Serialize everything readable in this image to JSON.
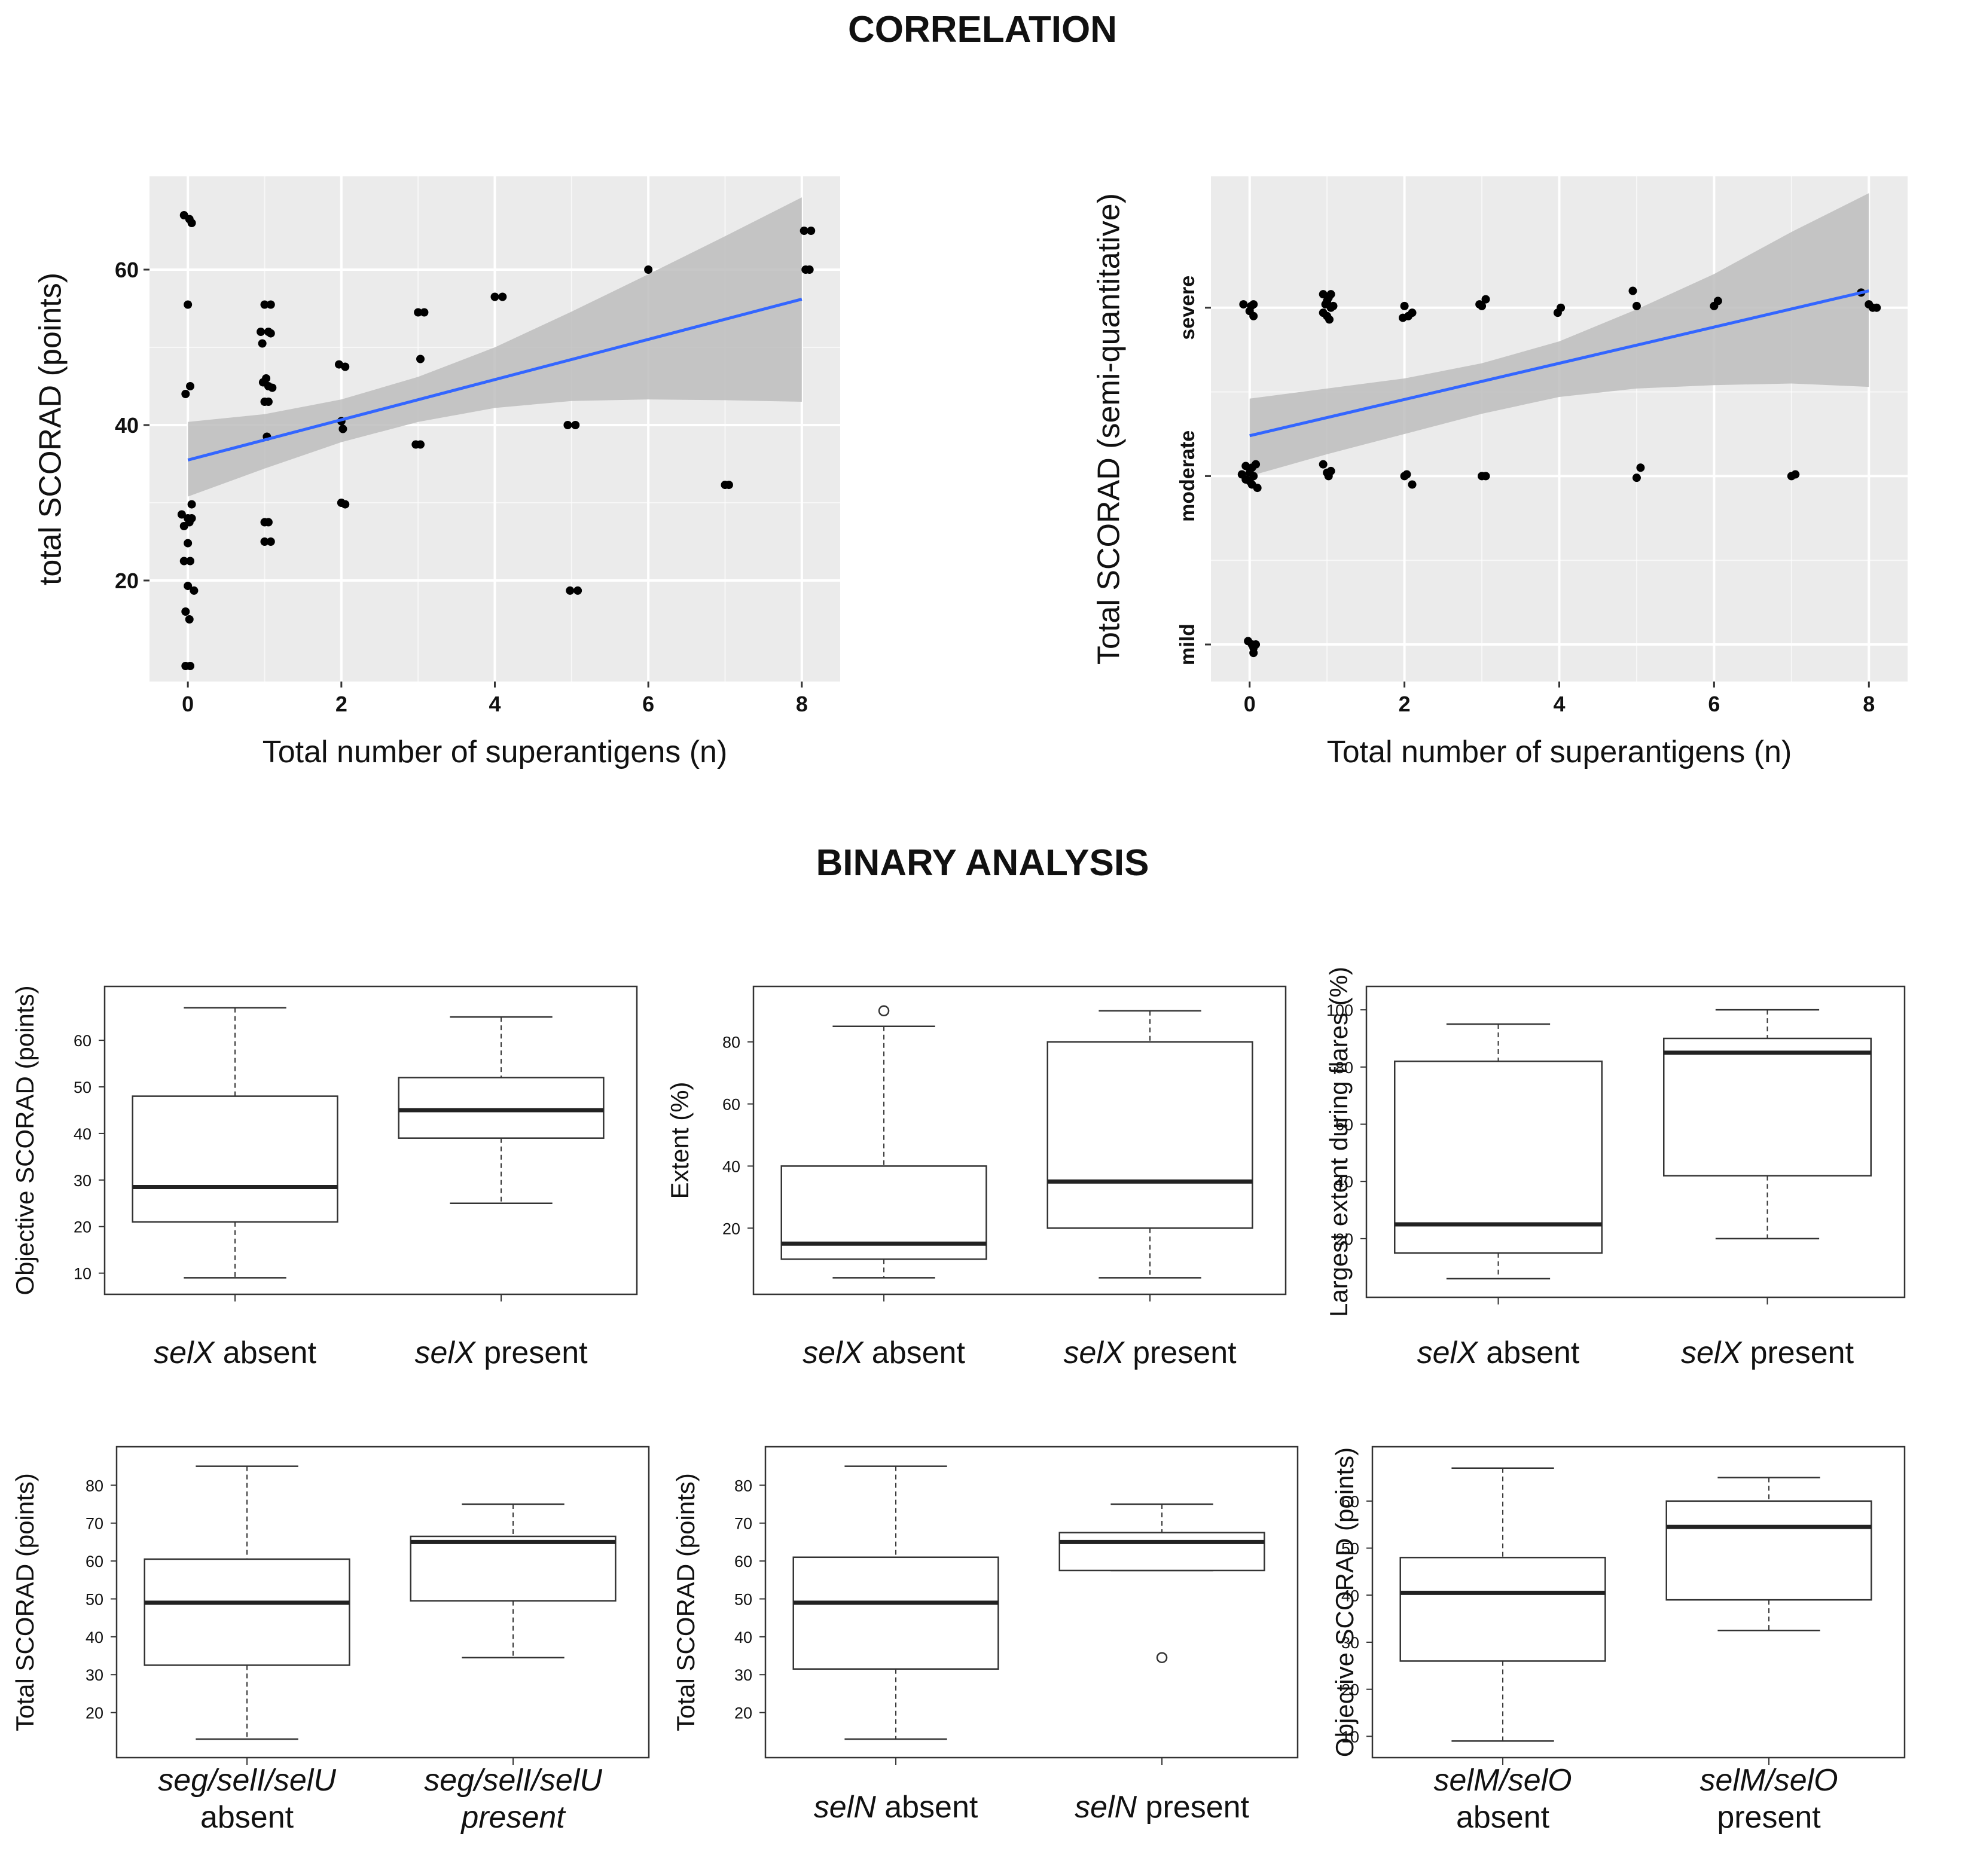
{
  "titles": {
    "correlation": "CORRELATION",
    "binary": "BINARY ANALYSIS"
  },
  "colors": {
    "panel_bg": "#ebebeb",
    "grid": "#ffffff",
    "points": "#000000",
    "fit_line": "#3366ff",
    "ribbon": "#bdbdbd",
    "box_stroke": "#333333"
  },
  "chart_data": [
    {
      "type": "scatter",
      "xlabel": "Total number of superantigens (n)",
      "ylabel": "total SCORAD (points)",
      "xlim": [
        -0.5,
        8.5
      ],
      "ylim": [
        7,
        72
      ],
      "xticks": [
        0,
        2,
        4,
        6,
        8
      ],
      "yticks": [
        20,
        40,
        60
      ],
      "grid": true,
      "points": [
        [
          -0.05,
          67
        ],
        [
          0.02,
          66.5
        ],
        [
          0.05,
          66
        ],
        [
          0,
          55.5
        ],
        [
          0.03,
          45
        ],
        [
          -0.03,
          44
        ],
        [
          -0.08,
          28.5
        ],
        [
          0,
          28
        ],
        [
          0.05,
          28
        ],
        [
          0.02,
          27.5
        ],
        [
          -0.05,
          27
        ],
        [
          0.05,
          29.8
        ],
        [
          0,
          24.8
        ],
        [
          -0.05,
          22.5
        ],
        [
          0.03,
          22.5
        ],
        [
          0,
          19.3
        ],
        [
          0.08,
          18.7
        ],
        [
          -0.03,
          16
        ],
        [
          0.02,
          15
        ],
        [
          -0.03,
          9
        ],
        [
          0.03,
          9
        ],
        [
          1,
          55.5
        ],
        [
          1.08,
          55.5
        ],
        [
          0.95,
          52
        ],
        [
          1.05,
          52
        ],
        [
          1.08,
          51.8
        ],
        [
          0.97,
          50.5
        ],
        [
          1.02,
          46
        ],
        [
          0.98,
          45.5
        ],
        [
          1.05,
          45
        ],
        [
          1.1,
          44.8
        ],
        [
          1,
          43
        ],
        [
          1.05,
          43
        ],
        [
          1.03,
          38.5
        ],
        [
          1,
          27.5
        ],
        [
          1.05,
          27.5
        ],
        [
          1,
          25
        ],
        [
          1.08,
          25
        ],
        [
          1.97,
          47.8
        ],
        [
          2.05,
          47.5
        ],
        [
          2,
          40.5
        ],
        [
          2.02,
          39.5
        ],
        [
          2,
          30
        ],
        [
          2.05,
          29.8
        ],
        [
          3,
          54.5
        ],
        [
          3.08,
          54.5
        ],
        [
          3.03,
          48.5
        ],
        [
          2.97,
          37.5
        ],
        [
          3.03,
          37.5
        ],
        [
          4,
          56.5
        ],
        [
          4.1,
          56.5
        ],
        [
          4.95,
          40
        ],
        [
          5.05,
          40
        ],
        [
          4.98,
          18.7
        ],
        [
          5.08,
          18.7
        ],
        [
          6,
          60
        ],
        [
          7,
          32.3
        ],
        [
          7.05,
          32.3
        ],
        [
          8.03,
          65
        ],
        [
          8.12,
          65
        ],
        [
          8.05,
          60
        ],
        [
          8.1,
          60
        ]
      ],
      "fit": {
        "x": [
          0,
          8
        ],
        "y": [
          35.5,
          56.2
        ]
      },
      "ci_band": {
        "x": [
          0,
          1,
          2,
          3,
          4,
          5,
          6,
          7,
          8
        ],
        "lower": [
          30.8,
          34.4,
          37.8,
          40.4,
          42.2,
          43.1,
          43.3,
          43.2,
          43
        ],
        "upper": [
          40.4,
          41.4,
          43.3,
          46.2,
          50,
          54.6,
          59.4,
          64.3,
          69.3
        ]
      }
    },
    {
      "type": "scatter",
      "xlabel": "Total number of superantigens (n)",
      "ylabel": "Total SCORAD (semi-quantitative)",
      "xlim": [
        -0.5,
        8.5
      ],
      "ylim": [
        0.78,
        3.78
      ],
      "xticks": [
        0,
        2,
        4,
        6,
        8
      ],
      "ytick_values": [
        1,
        2,
        3
      ],
      "ytick_labels": [
        "mild",
        "moderate",
        "severe"
      ],
      "grid": true,
      "points": [
        [
          -0.08,
          3.02
        ],
        [
          0.02,
          3.01
        ],
        [
          0.05,
          3.02
        ],
        [
          0,
          2.98
        ],
        [
          0.05,
          2.95
        ],
        [
          0.95,
          3.08
        ],
        [
          1.05,
          3.08
        ],
        [
          1,
          3.04
        ],
        [
          1.05,
          3
        ],
        [
          1.08,
          3.01
        ],
        [
          0.95,
          2.97
        ],
        [
          1,
          2.95
        ],
        [
          1.03,
          2.93
        ],
        [
          0.98,
          3.02
        ],
        [
          1.02,
          3.06
        ],
        [
          2,
          3.01
        ],
        [
          2.05,
          2.95
        ],
        [
          1.98,
          2.94
        ],
        [
          2.1,
          2.97
        ],
        [
          3,
          3.01
        ],
        [
          3.05,
          3.05
        ],
        [
          2.97,
          3.02
        ],
        [
          3.98,
          2.97
        ],
        [
          4.02,
          3
        ],
        [
          4.95,
          3.1
        ],
        [
          5,
          3.01
        ],
        [
          6,
          3.01
        ],
        [
          6.05,
          3.04
        ],
        [
          7.9,
          3.09
        ],
        [
          8,
          3.02
        ],
        [
          8.05,
          3
        ],
        [
          8.1,
          3
        ],
        [
          -0.05,
          2.06
        ],
        [
          0.03,
          2.05
        ],
        [
          0.08,
          2.07
        ],
        [
          -0.1,
          2.01
        ],
        [
          0,
          2.02
        ],
        [
          0.05,
          2
        ],
        [
          -0.05,
          1.98
        ],
        [
          0,
          1.97
        ],
        [
          0.03,
          1.95
        ],
        [
          0.1,
          1.93
        ],
        [
          0.95,
          2.07
        ],
        [
          1.05,
          2.03
        ],
        [
          1.02,
          2
        ],
        [
          1,
          2.02
        ],
        [
          2,
          2
        ],
        [
          2.03,
          2.01
        ],
        [
          2.1,
          1.95
        ],
        [
          3,
          2
        ],
        [
          3.05,
          2
        ],
        [
          5,
          1.99
        ],
        [
          5.05,
          2.05
        ],
        [
          7,
          2
        ],
        [
          7.05,
          2.01
        ],
        [
          -0.02,
          1.02
        ],
        [
          0.03,
          1
        ],
        [
          0.05,
          0.98
        ],
        [
          0.08,
          1
        ],
        [
          0.05,
          0.95
        ]
      ],
      "fit": {
        "x": [
          0,
          8
        ],
        "y": [
          2.24,
          3.1
        ]
      },
      "ci_band": {
        "x": [
          0,
          1,
          2,
          3,
          4,
          5,
          6,
          7,
          8
        ],
        "lower": [
          2,
          2.13,
          2.25,
          2.37,
          2.47,
          2.52,
          2.54,
          2.55,
          2.53
        ],
        "upper": [
          2.46,
          2.52,
          2.58,
          2.67,
          2.8,
          2.99,
          3.2,
          3.45,
          3.68
        ]
      }
    },
    {
      "type": "box",
      "ylabel": "Objective SCORAD (points)",
      "ylim": [
        7,
        69
      ],
      "yticks": [
        10,
        20,
        30,
        40,
        50,
        60
      ],
      "groups": [
        {
          "label": [
            [
              [
                "selX",
                true
              ],
              [
                " absent",
                false
              ]
            ]
          ],
          "min": 9,
          "q1": 21,
          "median": 28.5,
          "q3": 48,
          "max": 67,
          "outliers": []
        },
        {
          "label": [
            [
              [
                "selX",
                true
              ],
              [
                " present",
                false
              ]
            ]
          ],
          "min": 25,
          "q1": 39,
          "median": 45,
          "q3": 52,
          "max": 65,
          "outliers": []
        }
      ]
    },
    {
      "type": "box",
      "ylabel": "Extent (%)",
      "ylim": [
        1,
        94
      ],
      "yticks": [
        20,
        40,
        60,
        80
      ],
      "groups": [
        {
          "label": [
            [
              [
                "selX",
                true
              ],
              [
                " absent",
                false
              ]
            ]
          ],
          "min": 4,
          "q1": 10,
          "median": 15,
          "q3": 40,
          "max": 85,
          "outliers": [
            90
          ]
        },
        {
          "label": [
            [
              [
                "selX",
                true
              ],
              [
                " present",
                false
              ]
            ]
          ],
          "min": 4,
          "q1": 20,
          "median": 35,
          "q3": 80,
          "max": 90,
          "outliers": []
        }
      ]
    },
    {
      "type": "box",
      "ylabel": "Largest extent during flares (%)",
      "ylim": [
        2,
        104
      ],
      "yticks": [
        20,
        40,
        60,
        80,
        100
      ],
      "groups": [
        {
          "label": [
            [
              [
                "selX",
                true
              ],
              [
                " absent",
                false
              ]
            ]
          ],
          "min": 6,
          "q1": 15,
          "median": 25,
          "q3": 82,
          "max": 95,
          "outliers": []
        },
        {
          "label": [
            [
              [
                "selX",
                true
              ],
              [
                " present",
                false
              ]
            ]
          ],
          "min": 20,
          "q1": 42,
          "median": 85,
          "q3": 90,
          "max": 100,
          "outliers": []
        }
      ]
    },
    {
      "type": "box",
      "ylabel": "Total SCORAD (points)",
      "ylim": [
        10,
        87
      ],
      "yticks": [
        20,
        30,
        40,
        50,
        60,
        70,
        80
      ],
      "groups": [
        {
          "label": [
            [
              [
                "seg/selI/selU",
                true
              ]
            ],
            [
              [
                "absent",
                false
              ]
            ]
          ],
          "min": 13,
          "q1": 32.5,
          "median": 49,
          "q3": 60.5,
          "max": 85,
          "outliers": []
        },
        {
          "label": [
            [
              [
                "seg/selI/selU",
                true
              ]
            ],
            [
              [
                "present",
                true
              ]
            ]
          ],
          "min": 34.5,
          "q1": 49.5,
          "median": 65,
          "q3": 66.5,
          "max": 75,
          "outliers": []
        }
      ]
    },
    {
      "type": "box",
      "ylabel": "Total SCORAD (points)",
      "ylim": [
        10,
        87
      ],
      "yticks": [
        20,
        30,
        40,
        50,
        60,
        70,
        80
      ],
      "groups": [
        {
          "label": [
            [
              [
                "selN",
                true
              ],
              [
                " absent",
                false
              ]
            ]
          ],
          "min": 13,
          "q1": 31.5,
          "median": 49,
          "q3": 61,
          "max": 85,
          "outliers": []
        },
        {
          "label": [
            [
              [
                "selN",
                true
              ],
              [
                " present",
                false
              ]
            ]
          ],
          "min": 57.5,
          "q1": 57.5,
          "median": 65,
          "q3": 67.5,
          "max": 75,
          "outliers": [
            34.5
          ]
        }
      ]
    },
    {
      "type": "box",
      "ylabel": "Objective SCORAD (points)",
      "ylim": [
        7,
        69
      ],
      "yticks": [
        10,
        20,
        30,
        40,
        50,
        60
      ],
      "groups": [
        {
          "label": [
            [
              [
                "selM/selO",
                true
              ]
            ],
            [
              [
                "absent",
                false
              ]
            ]
          ],
          "min": 9,
          "q1": 26,
          "median": 40.5,
          "q3": 48,
          "max": 67,
          "outliers": []
        },
        {
          "label": [
            [
              [
                "selM/selO",
                true
              ]
            ],
            [
              [
                "present",
                false
              ]
            ]
          ],
          "min": 32.5,
          "q1": 39,
          "median": 54.5,
          "q3": 60,
          "max": 65,
          "outliers": []
        }
      ]
    }
  ]
}
